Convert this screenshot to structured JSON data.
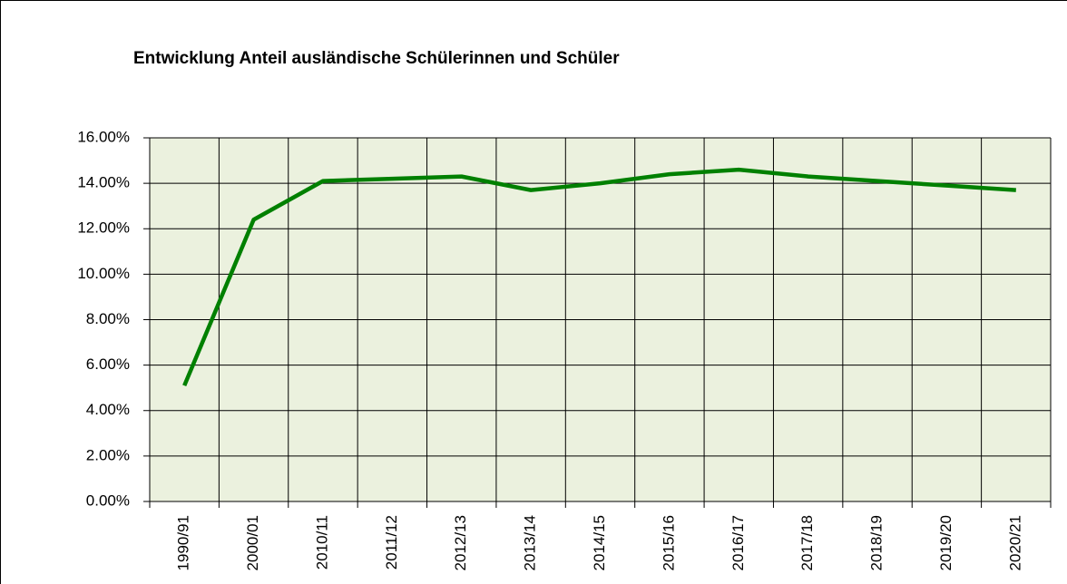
{
  "chart_data": {
    "type": "line",
    "title": "Entwicklung Anteil ausländische Schülerinnen und Schüler",
    "categories": [
      "1990/91",
      "2000/01",
      "2010/11",
      "2011/12",
      "2012/13",
      "2013/14",
      "2014/15",
      "2015/16",
      "2016/17",
      "2017/18",
      "2018/19",
      "2019/20",
      "2020/21"
    ],
    "series": [
      {
        "name": "Anteil",
        "color": "#008000",
        "values": [
          5.1,
          12.4,
          14.1,
          14.2,
          14.3,
          13.7,
          14.0,
          14.4,
          14.6,
          14.3,
          14.1,
          13.9,
          13.7
        ]
      }
    ],
    "ylim": [
      0,
      16
    ],
    "yticks": [
      {
        "value": 0,
        "label": "0.00%"
      },
      {
        "value": 2,
        "label": "2.00%"
      },
      {
        "value": 4,
        "label": "4.00%"
      },
      {
        "value": 6,
        "label": "6.00%"
      },
      {
        "value": 8,
        "label": "8.00%"
      },
      {
        "value": 10,
        "label": "10.00%"
      },
      {
        "value": 12,
        "label": "12.00%"
      },
      {
        "value": 14,
        "label": "14.00%"
      },
      {
        "value": 16,
        "label": "16.00%"
      }
    ],
    "grid": true
  }
}
